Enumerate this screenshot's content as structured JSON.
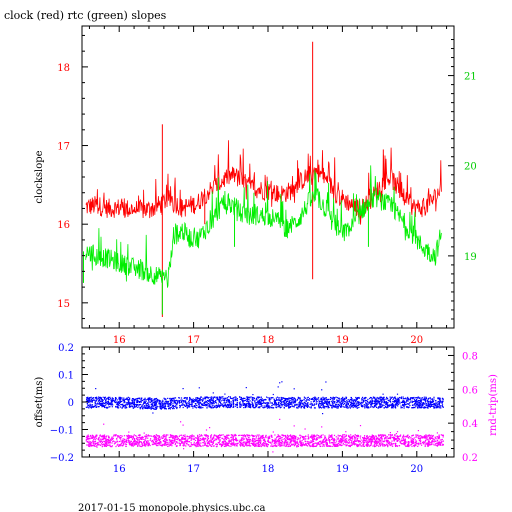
{
  "title": "clock (red) rtc (green) slopes",
  "footer": "2017-01-15 monopole.physics.ubc.ca",
  "colors": {
    "red": "#ff0000",
    "green": "#00ee00",
    "blue": "#0000ff",
    "magenta": "#ff00ff",
    "axis": "#000000"
  },
  "chart_data": [
    {
      "type": "line",
      "title": "clock (red) rtc (green) slopes",
      "xlabel": "",
      "ylabel": "clockslope",
      "y2label": "",
      "xlim": [
        15.5,
        20.5
      ],
      "ylim": [
        14.68,
        18.52
      ],
      "y2lim": [
        18.2,
        21.55
      ],
      "xticks": [
        16,
        17,
        18,
        19,
        20
      ],
      "yticks": [
        15,
        16,
        17,
        18
      ],
      "y2ticks": [
        19,
        20,
        21
      ],
      "grid": false,
      "series": [
        {
          "name": "clock",
          "color": "#ff0000",
          "axis": "left",
          "x": [
            15.55,
            15.7,
            15.85,
            16.0,
            16.15,
            16.3,
            16.45,
            16.55,
            16.65,
            16.75,
            16.85,
            16.95,
            17.05,
            17.15,
            17.25,
            17.35,
            17.45,
            17.55,
            17.65,
            17.75,
            17.85,
            17.95,
            18.05,
            18.15,
            18.25,
            18.35,
            18.45,
            18.55,
            18.65,
            18.75,
            18.85,
            18.95,
            19.05,
            19.15,
            19.25,
            19.35,
            19.45,
            19.55,
            19.65,
            19.75,
            19.85,
            19.95,
            20.05,
            20.15,
            20.25,
            20.33
          ],
          "y": [
            16.22,
            16.24,
            16.2,
            16.21,
            16.19,
            16.18,
            16.2,
            16.25,
            16.32,
            16.27,
            16.2,
            16.24,
            16.26,
            16.38,
            16.45,
            16.52,
            16.6,
            16.62,
            16.55,
            16.48,
            16.45,
            16.43,
            16.42,
            16.38,
            16.4,
            16.45,
            16.55,
            16.62,
            16.68,
            16.6,
            16.48,
            16.35,
            16.3,
            16.22,
            16.2,
            16.28,
            16.4,
            16.55,
            16.6,
            16.45,
            16.3,
            16.22,
            16.2,
            16.25,
            16.35,
            16.45
          ]
        },
        {
          "name": "rtc",
          "color": "#00ee00",
          "axis": "right",
          "x": [
            15.55,
            15.7,
            15.85,
            16.0,
            16.15,
            16.3,
            16.45,
            16.55,
            16.65,
            16.75,
            16.85,
            16.95,
            17.05,
            17.15,
            17.25,
            17.35,
            17.45,
            17.55,
            17.65,
            17.75,
            17.85,
            17.95,
            18.05,
            18.15,
            18.25,
            18.35,
            18.45,
            18.55,
            18.65,
            18.75,
            18.85,
            18.95,
            19.05,
            19.15,
            19.25,
            19.35,
            19.45,
            19.55,
            19.65,
            19.75,
            19.85,
            19.95,
            20.05,
            20.15,
            20.25,
            20.33
          ],
          "y": [
            19.05,
            19.0,
            18.97,
            18.92,
            18.88,
            18.84,
            18.8,
            18.76,
            18.72,
            19.25,
            19.28,
            19.2,
            19.18,
            19.28,
            19.4,
            19.52,
            19.58,
            19.55,
            19.47,
            19.44,
            19.45,
            19.44,
            19.42,
            19.38,
            19.3,
            19.35,
            19.45,
            19.6,
            19.66,
            19.55,
            19.4,
            19.28,
            19.25,
            19.35,
            19.5,
            19.58,
            19.65,
            19.6,
            19.55,
            19.45,
            19.35,
            19.22,
            19.12,
            19.05,
            19.0,
            19.25
          ]
        }
      ]
    },
    {
      "type": "scatter",
      "title": "",
      "xlabel": "",
      "ylabel": "offset(ms)",
      "y2label": "rnd-trip(ms)",
      "xlim": [
        15.5,
        20.5
      ],
      "ylim": [
        -0.2,
        0.2
      ],
      "y2lim": [
        0.2,
        0.85
      ],
      "xticks": [
        16,
        17,
        18,
        19,
        20
      ],
      "yticks": [
        -0.2,
        -0.1,
        0,
        0.1,
        0.2
      ],
      "y2ticks": [
        0.2,
        0.4,
        0.6,
        0.8
      ],
      "ytick_labels": [
        "−0.2",
        "−0.1",
        "0",
        "0.1",
        "0.2"
      ],
      "y2tick_labels": [
        "0.2",
        "0.4",
        "0.6",
        "0.8"
      ],
      "grid": false,
      "series": [
        {
          "name": "offset",
          "color": "#0000ff",
          "axis": "left",
          "x": [
            15.55,
            16.0,
            16.5,
            17.0,
            17.5,
            18.0,
            18.5,
            19.0,
            19.5,
            20.0,
            20.35
          ],
          "y": [
            0.0,
            0.0,
            -0.005,
            0.0,
            0.002,
            0.0,
            0.0,
            0.0,
            0.0,
            0.0,
            0.0
          ],
          "spread": 0.02
        },
        {
          "name": "rnd-trip",
          "color": "#ff00ff",
          "axis": "right",
          "x": [
            15.55,
            16.0,
            16.5,
            17.0,
            17.5,
            18.0,
            18.5,
            19.0,
            19.5,
            20.0,
            20.35
          ],
          "y": [
            0.3,
            0.3,
            0.3,
            0.3,
            0.3,
            0.3,
            0.3,
            0.3,
            0.3,
            0.3,
            0.3
          ],
          "spread": 0.035
        }
      ]
    }
  ]
}
